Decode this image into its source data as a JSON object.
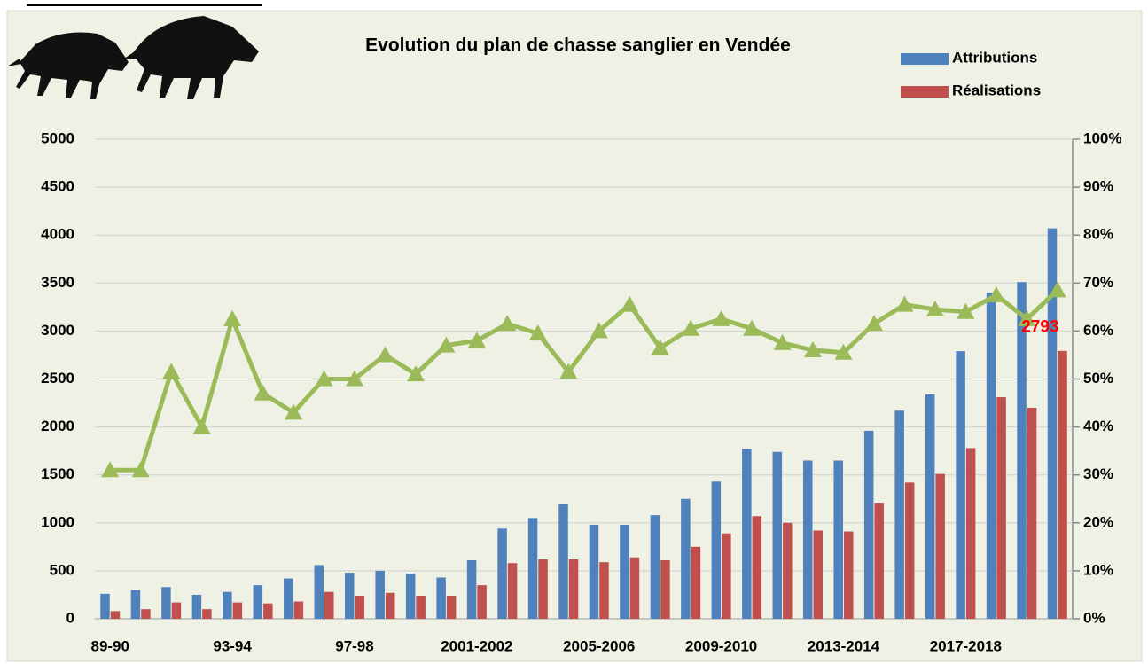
{
  "chart_data": {
    "type": "bar_line",
    "title": "Evolution du plan de chasse sanglier en Vendée",
    "categories": [
      "89-90",
      null,
      null,
      null,
      "93-94",
      null,
      null,
      null,
      "97-98",
      null,
      null,
      null,
      "2001-2002",
      null,
      null,
      null,
      "2005-2006",
      null,
      null,
      null,
      "2009-2010",
      null,
      null,
      null,
      "2013-2014",
      null,
      null,
      null,
      "2017-2018",
      null,
      null,
      null
    ],
    "series": [
      {
        "name": "Attributions",
        "color": "#4f81bd",
        "values": [
          260,
          300,
          330,
          250,
          280,
          350,
          420,
          560,
          480,
          500,
          470,
          430,
          610,
          940,
          1050,
          1200,
          980,
          980,
          1080,
          1250,
          1430,
          1770,
          1740,
          1650,
          1650,
          1960,
          2170,
          2340,
          2790,
          3400,
          3510,
          4070
        ]
      },
      {
        "name": "Réalisations",
        "color": "#c0504d",
        "label_last": true,
        "label_color": "#ff0000",
        "values": [
          80,
          100,
          170,
          100,
          170,
          160,
          180,
          280,
          240,
          270,
          240,
          240,
          350,
          580,
          620,
          620,
          590,
          640,
          610,
          750,
          890,
          1070,
          1000,
          920,
          910,
          1210,
          1420,
          1510,
          1780,
          2310,
          2200,
          2793
        ]
      },
      {
        "name": null,
        "type": "line",
        "axis": "y2",
        "color": "#9bbb59",
        "values": [
          31,
          31,
          51.5,
          40,
          62.5,
          47,
          43,
          50,
          50,
          55,
          51,
          57,
          58,
          61.5,
          59.5,
          51.5,
          60,
          65.5,
          56.5,
          60.5,
          62.5,
          60.5,
          57.5,
          56,
          55.5,
          61.5,
          65.5,
          64.5,
          64,
          67.5,
          62.5,
          68.5
        ]
      }
    ],
    "ylim": [
      0,
      5000
    ],
    "yticks": [
      0,
      500,
      1000,
      1500,
      2000,
      2500,
      3000,
      3500,
      4000,
      4500,
      5000
    ],
    "y2lim": [
      0,
      100
    ],
    "y2ticks": [
      {
        "value": 0,
        "label": "0%"
      },
      {
        "value": 10,
        "label": "10%"
      },
      {
        "value": 20,
        "label": "20%"
      },
      {
        "value": 30,
        "label": "30%"
      },
      {
        "value": 40,
        "label": "40%"
      },
      {
        "value": 50,
        "label": "50%"
      },
      {
        "value": 60,
        "label": "60%"
      },
      {
        "value": 70,
        "label": "70%"
      },
      {
        "value": 80,
        "label": "80%"
      },
      {
        "value": 90,
        "label": "90%"
      },
      {
        "value": 100,
        "label": "100%"
      }
    ],
    "grid": true
  }
}
